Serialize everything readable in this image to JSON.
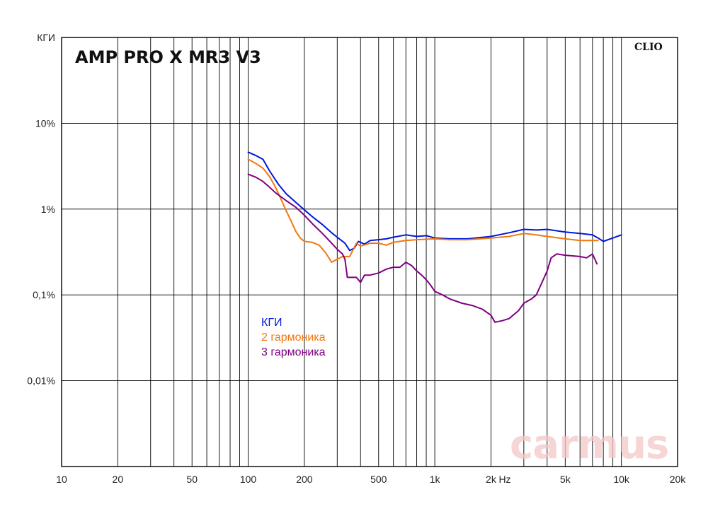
{
  "chart_data": {
    "type": "line",
    "title": "AMP PRO X MR3 V3",
    "brand": "CLIO",
    "watermark": "carmus",
    "xlabel": "Hz",
    "ylabel": "КГИ",
    "xscale": "log",
    "yscale": "log",
    "xlim": [
      10,
      20000
    ],
    "ylim": [
      0.001,
      100
    ],
    "x_tick_labels": [
      {
        "value": 10,
        "label": "10"
      },
      {
        "value": 20,
        "label": "20"
      },
      {
        "value": 50,
        "label": "50"
      },
      {
        "value": 100,
        "label": "100"
      },
      {
        "value": 200,
        "label": "200"
      },
      {
        "value": 500,
        "label": "500"
      },
      {
        "value": 1000,
        "label": "1k"
      },
      {
        "value": 2000,
        "label": "2k"
      },
      {
        "value": 5000,
        "label": "5k"
      },
      {
        "value": 10000,
        "label": "10k"
      },
      {
        "value": 20000,
        "label": "20k"
      }
    ],
    "y_tick_labels": [
      {
        "value": 100,
        "label": "КГИ"
      },
      {
        "value": 10,
        "label": "10%"
      },
      {
        "value": 1,
        "label": "1%"
      },
      {
        "value": 0.1,
        "label": "0,1%"
      },
      {
        "value": 0.01,
        "label": "0,01%"
      }
    ],
    "grid": true,
    "legend_position": "center-left",
    "series": [
      {
        "name": "КГИ",
        "color": "#0018d8",
        "points": [
          [
            100,
            4.6
          ],
          [
            110,
            4.2
          ],
          [
            120,
            3.8
          ],
          [
            130,
            2.8
          ],
          [
            145,
            1.95
          ],
          [
            160,
            1.5
          ],
          [
            180,
            1.2
          ],
          [
            200,
            0.98
          ],
          [
            220,
            0.82
          ],
          [
            250,
            0.66
          ],
          [
            280,
            0.53
          ],
          [
            300,
            0.47
          ],
          [
            330,
            0.4
          ],
          [
            350,
            0.33
          ],
          [
            370,
            0.35
          ],
          [
            390,
            0.42
          ],
          [
            420,
            0.39
          ],
          [
            450,
            0.43
          ],
          [
            500,
            0.44
          ],
          [
            550,
            0.45
          ],
          [
            600,
            0.47
          ],
          [
            700,
            0.5
          ],
          [
            800,
            0.48
          ],
          [
            900,
            0.49
          ],
          [
            1000,
            0.46
          ],
          [
            1200,
            0.45
          ],
          [
            1500,
            0.45
          ],
          [
            2000,
            0.48
          ],
          [
            2500,
            0.53
          ],
          [
            3000,
            0.58
          ],
          [
            3500,
            0.57
          ],
          [
            4000,
            0.58
          ],
          [
            5000,
            0.54
          ],
          [
            6000,
            0.52
          ],
          [
            7000,
            0.5
          ],
          [
            7500,
            0.46
          ],
          [
            8000,
            0.42
          ],
          [
            9000,
            0.46
          ],
          [
            10000,
            0.5
          ]
        ]
      },
      {
        "name": "2 гармоника",
        "color": "#f07810",
        "points": [
          [
            100,
            3.8
          ],
          [
            110,
            3.4
          ],
          [
            120,
            3.0
          ],
          [
            130,
            2.4
          ],
          [
            140,
            1.8
          ],
          [
            150,
            1.3
          ],
          [
            160,
            0.95
          ],
          [
            170,
            0.72
          ],
          [
            180,
            0.55
          ],
          [
            190,
            0.46
          ],
          [
            200,
            0.42
          ],
          [
            220,
            0.41
          ],
          [
            240,
            0.38
          ],
          [
            260,
            0.31
          ],
          [
            280,
            0.24
          ],
          [
            300,
            0.26
          ],
          [
            320,
            0.28
          ],
          [
            350,
            0.28
          ],
          [
            380,
            0.4
          ],
          [
            400,
            0.37
          ],
          [
            450,
            0.4
          ],
          [
            500,
            0.4
          ],
          [
            550,
            0.38
          ],
          [
            600,
            0.41
          ],
          [
            700,
            0.43
          ],
          [
            800,
            0.44
          ],
          [
            1000,
            0.45
          ],
          [
            1200,
            0.44
          ],
          [
            1500,
            0.44
          ],
          [
            2000,
            0.46
          ],
          [
            2500,
            0.48
          ],
          [
            3000,
            0.52
          ],
          [
            3500,
            0.5
          ],
          [
            4000,
            0.48
          ],
          [
            5000,
            0.45
          ],
          [
            6000,
            0.43
          ],
          [
            7000,
            0.43
          ],
          [
            7500,
            0.43
          ]
        ]
      },
      {
        "name": "3 гармоника",
        "color": "#800080",
        "points": [
          [
            100,
            2.55
          ],
          [
            110,
            2.35
          ],
          [
            120,
            2.1
          ],
          [
            130,
            1.8
          ],
          [
            140,
            1.55
          ],
          [
            160,
            1.25
          ],
          [
            180,
            1.05
          ],
          [
            200,
            0.85
          ],
          [
            220,
            0.68
          ],
          [
            250,
            0.52
          ],
          [
            280,
            0.4
          ],
          [
            300,
            0.34
          ],
          [
            320,
            0.3
          ],
          [
            330,
            0.26
          ],
          [
            340,
            0.16
          ],
          [
            360,
            0.16
          ],
          [
            380,
            0.16
          ],
          [
            400,
            0.14
          ],
          [
            420,
            0.17
          ],
          [
            450,
            0.17
          ],
          [
            500,
            0.18
          ],
          [
            550,
            0.2
          ],
          [
            600,
            0.21
          ],
          [
            650,
            0.21
          ],
          [
            700,
            0.24
          ],
          [
            750,
            0.22
          ],
          [
            800,
            0.19
          ],
          [
            850,
            0.17
          ],
          [
            900,
            0.15
          ],
          [
            950,
            0.13
          ],
          [
            1000,
            0.11
          ],
          [
            1100,
            0.1
          ],
          [
            1200,
            0.09
          ],
          [
            1400,
            0.08
          ],
          [
            1600,
            0.075
          ],
          [
            1800,
            0.068
          ],
          [
            2000,
            0.058
          ],
          [
            2100,
            0.048
          ],
          [
            2300,
            0.05
          ],
          [
            2500,
            0.053
          ],
          [
            2800,
            0.065
          ],
          [
            3000,
            0.08
          ],
          [
            3300,
            0.09
          ],
          [
            3500,
            0.1
          ],
          [
            4000,
            0.19
          ],
          [
            4200,
            0.27
          ],
          [
            4500,
            0.3
          ],
          [
            5000,
            0.29
          ],
          [
            6000,
            0.28
          ],
          [
            6500,
            0.27
          ],
          [
            7000,
            0.3
          ],
          [
            7400,
            0.23
          ]
        ]
      }
    ]
  }
}
